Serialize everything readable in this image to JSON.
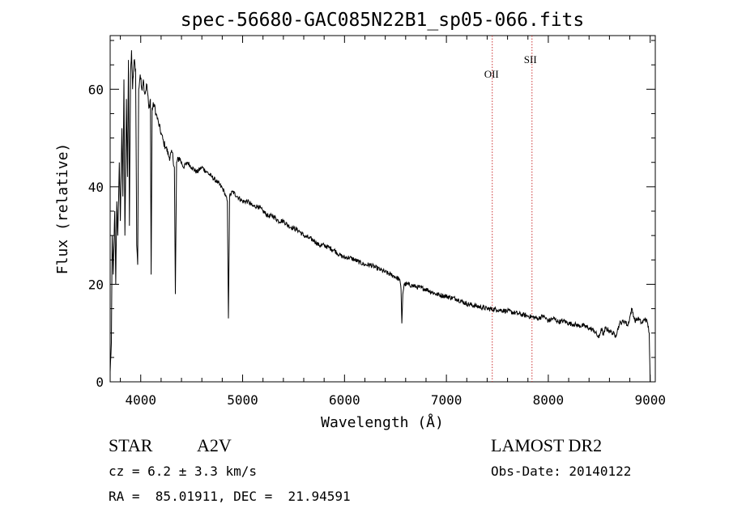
{
  "chart_data": {
    "type": "line",
    "title": "spec-56680-GAC085N22B1_sp05-066.fits",
    "xlabel": "Wavelength (Å)",
    "ylabel": "Flux (relative)",
    "xlim": [
      3700,
      9050
    ],
    "ylim": [
      0,
      71
    ],
    "xticks": [
      4000,
      5000,
      6000,
      7000,
      8000,
      9000
    ],
    "yticks": [
      0,
      20,
      40,
      60
    ],
    "grid": false,
    "line_color": "#000000",
    "series": [
      {
        "values": [
          [
            3700,
            2
          ],
          [
            3712,
            8
          ],
          [
            3720,
            30
          ],
          [
            3730,
            22
          ],
          [
            3745,
            35
          ],
          [
            3755,
            20
          ],
          [
            3765,
            37
          ],
          [
            3775,
            30
          ],
          [
            3790,
            45
          ],
          [
            3800,
            33
          ],
          [
            3815,
            52
          ],
          [
            3825,
            38
          ],
          [
            3835,
            62
          ],
          [
            3845,
            30
          ],
          [
            3860,
            58
          ],
          [
            3870,
            42
          ],
          [
            3880,
            66
          ],
          [
            3889,
            32
          ],
          [
            3900,
            63
          ],
          [
            3910,
            68
          ],
          [
            3920,
            60
          ],
          [
            3935,
            66
          ],
          [
            3950,
            64
          ],
          [
            3961,
            28
          ],
          [
            3970,
            24
          ],
          [
            3980,
            60
          ],
          [
            3995,
            63
          ],
          [
            4010,
            60
          ],
          [
            4025,
            62
          ],
          [
            4040,
            59
          ],
          [
            4060,
            61
          ],
          [
            4080,
            56
          ],
          [
            4095,
            58
          ],
          [
            4102,
            22
          ],
          [
            4112,
            56
          ],
          [
            4130,
            57
          ],
          [
            4150,
            55
          ],
          [
            4175,
            53
          ],
          [
            4200,
            51
          ],
          [
            4225,
            49
          ],
          [
            4250,
            48
          ],
          [
            4280,
            46
          ],
          [
            4310,
            47
          ],
          [
            4330,
            44
          ],
          [
            4340,
            18
          ],
          [
            4352,
            45
          ],
          [
            4380,
            46
          ],
          [
            4420,
            44
          ],
          [
            4460,
            45
          ],
          [
            4500,
            44
          ],
          [
            4550,
            43
          ],
          [
            4600,
            44
          ],
          [
            4650,
            43
          ],
          [
            4700,
            42
          ],
          [
            4750,
            41
          ],
          [
            4790,
            40
          ],
          [
            4820,
            39
          ],
          [
            4850,
            37
          ],
          [
            4861,
            13
          ],
          [
            4872,
            38
          ],
          [
            4900,
            39
          ],
          [
            4950,
            38
          ],
          [
            5000,
            37
          ],
          [
            5050,
            37
          ],
          [
            5100,
            36
          ],
          [
            5150,
            36
          ],
          [
            5200,
            35
          ],
          [
            5250,
            34
          ],
          [
            5300,
            34
          ],
          [
            5350,
            33
          ],
          [
            5400,
            33
          ],
          [
            5450,
            32
          ],
          [
            5500,
            31.5
          ],
          [
            5550,
            31
          ],
          [
            5600,
            30
          ],
          [
            5650,
            29.5
          ],
          [
            5700,
            29
          ],
          [
            5750,
            28
          ],
          [
            5800,
            28
          ],
          [
            5850,
            27.5
          ],
          [
            5900,
            27
          ],
          [
            5950,
            26
          ],
          [
            6000,
            25.5
          ],
          [
            6050,
            25.5
          ],
          [
            6100,
            25
          ],
          [
            6150,
            24.5
          ],
          [
            6200,
            24
          ],
          [
            6250,
            24
          ],
          [
            6300,
            23.5
          ],
          [
            6350,
            23
          ],
          [
            6400,
            22.5
          ],
          [
            6450,
            22
          ],
          [
            6500,
            21.5
          ],
          [
            6540,
            21
          ],
          [
            6555,
            19
          ],
          [
            6563,
            12
          ],
          [
            6572,
            18
          ],
          [
            6585,
            20
          ],
          [
            6620,
            20
          ],
          [
            6700,
            19.5
          ],
          [
            6800,
            19
          ],
          [
            6900,
            18
          ],
          [
            7000,
            17.5
          ],
          [
            7100,
            17
          ],
          [
            7200,
            16
          ],
          [
            7300,
            15.5
          ],
          [
            7400,
            15
          ],
          [
            7500,
            14.8
          ],
          [
            7600,
            14.5
          ],
          [
            7700,
            14
          ],
          [
            7800,
            13.5
          ],
          [
            7900,
            13
          ],
          [
            7950,
            13.5
          ],
          [
            8000,
            12.5
          ],
          [
            8050,
            13
          ],
          [
            8100,
            12.3
          ],
          [
            8150,
            12.5
          ],
          [
            8200,
            12
          ],
          [
            8250,
            11.8
          ],
          [
            8300,
            11.5
          ],
          [
            8350,
            11.5
          ],
          [
            8400,
            11
          ],
          [
            8450,
            10.5
          ],
          [
            8498,
            9
          ],
          [
            8520,
            11
          ],
          [
            8542,
            9.5
          ],
          [
            8560,
            11
          ],
          [
            8600,
            10.5
          ],
          [
            8662,
            9.5
          ],
          [
            8700,
            12
          ],
          [
            8750,
            12.5
          ],
          [
            8780,
            11.5
          ],
          [
            8820,
            15
          ],
          [
            8850,
            12.5
          ],
          [
            8880,
            13
          ],
          [
            8920,
            12
          ],
          [
            8950,
            13
          ],
          [
            8975,
            12
          ],
          [
            8990,
            10
          ],
          [
            9000,
            0
          ]
        ]
      }
    ],
    "annotations": [
      {
        "label": "OII",
        "x": 7450,
        "color": "#cc3333"
      },
      {
        "label": "SII",
        "x": 7840,
        "color": "#cc3333"
      }
    ]
  },
  "info": {
    "object_class": "STAR",
    "subclass": "A2V",
    "survey": "LAMOST DR2",
    "cz": "cz = 6.2 ± 3.3 km/s",
    "obs_date": "Obs-Date: 20140122",
    "coords": "RA =  85.01911, DEC =  21.94591"
  }
}
